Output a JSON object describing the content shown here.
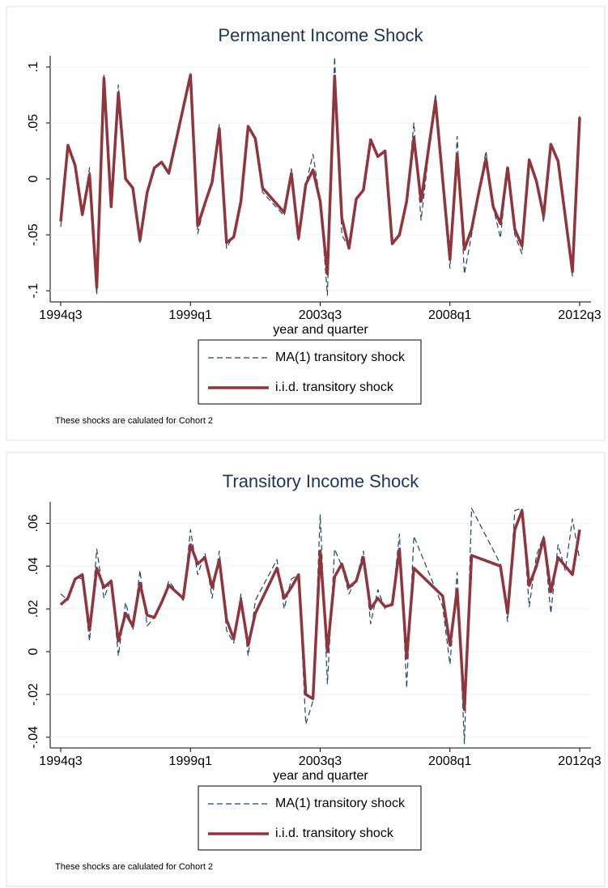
{
  "chart_data": [
    {
      "type": "line",
      "title": "Permanent Income Shock",
      "xlabel": "year and quarter",
      "note": "These shocks are calulated for Cohort 2",
      "x": [
        "1994q3",
        "1994q4",
        "1995q1",
        "1995q2",
        "1995q3",
        "1995q4",
        "1996q1",
        "1996q2",
        "1996q3",
        "1996q4",
        "1997q1",
        "1997q2",
        "1997q3",
        "1997q4",
        "1998q1",
        "1998q2",
        "1999q1",
        "1999q2",
        "1999q3",
        "1999q4",
        "2000q1",
        "2000q2",
        "2000q3",
        "2000q4",
        "2001q1",
        "2001q2",
        "2001q3",
        "2002q2",
        "2002q3",
        "2002q4",
        "2003q1",
        "2003q2",
        "2003q3",
        "2003q4",
        "2004q1",
        "2004q2",
        "2004q3",
        "2004q4",
        "2005q1",
        "2005q2",
        "2005q3",
        "2005q4",
        "2006q1",
        "2006q2",
        "2006q3",
        "2006q4",
        "2007q1",
        "2007q3",
        "2008q1",
        "2008q2",
        "2008q3",
        "2008q4",
        "2009q1",
        "2009q2",
        "2009q3",
        "2009q4",
        "2010q1",
        "2010q2",
        "2010q3",
        "2010q4",
        "2011q1",
        "2011q2",
        "2011q3",
        "2011q4",
        "2012q2",
        "2012q3"
      ],
      "series": [
        {
          "name": "MA(1) transitory shock",
          "color": "#1a476f",
          "dash": true,
          "values": [
            -0.043,
            0.03,
            0.012,
            -0.032,
            0.01,
            -0.104,
            0.094,
            -0.025,
            0.084,
            0.0,
            -0.008,
            -0.057,
            -0.012,
            0.01,
            0.015,
            0.005,
            0.094,
            -0.049,
            -0.022,
            -0.003,
            0.049,
            -0.062,
            -0.05,
            -0.02,
            0.047,
            0.037,
            -0.012,
            -0.033,
            0.009,
            -0.055,
            -0.005,
            0.022,
            -0.02,
            -0.104,
            0.109,
            -0.05,
            -0.062,
            -0.018,
            -0.01,
            0.035,
            0.02,
            0.025,
            -0.058,
            -0.05,
            -0.02,
            0.05,
            -0.037,
            0.076,
            -0.08,
            0.038,
            -0.085,
            -0.05,
            -0.012,
            0.025,
            -0.025,
            -0.053,
            0.01,
            -0.05,
            -0.067,
            0.018,
            0.0,
            -0.039,
            0.031,
            0.016,
            -0.087,
            0.059
          ]
        },
        {
          "name": "i.i.d. transitory shock",
          "color": "#90353b",
          "dash": false,
          "values": [
            -0.038,
            0.03,
            0.012,
            -0.032,
            0.004,
            -0.097,
            0.09,
            -0.025,
            0.077,
            0.0,
            -0.008,
            -0.055,
            -0.012,
            0.01,
            0.015,
            0.005,
            0.093,
            -0.042,
            -0.022,
            -0.003,
            0.045,
            -0.057,
            -0.052,
            -0.02,
            0.047,
            0.036,
            -0.008,
            -0.03,
            0.005,
            -0.053,
            -0.005,
            0.008,
            -0.02,
            -0.085,
            0.092,
            -0.035,
            -0.062,
            -0.018,
            -0.01,
            0.035,
            0.02,
            0.025,
            -0.058,
            -0.05,
            -0.02,
            0.037,
            -0.02,
            0.07,
            -0.072,
            0.022,
            -0.063,
            -0.045,
            -0.012,
            0.018,
            -0.025,
            -0.04,
            0.01,
            -0.045,
            -0.06,
            0.017,
            -0.002,
            -0.033,
            0.031,
            0.016,
            -0.083,
            0.055
          ]
        }
      ],
      "xlim": [
        "1994q3",
        "2012q3"
      ],
      "xticks": [
        "1994q3",
        "1999q1",
        "2003q3",
        "2008q1",
        "2012q3"
      ],
      "ylim": [
        -0.11,
        0.11
      ],
      "yticks": [
        {
          "value": -0.1,
          "label": "-.1"
        },
        {
          "value": -0.05,
          "label": "-.05"
        },
        0,
        {
          "value": 0.05,
          "label": ".05"
        },
        {
          "value": 0.1,
          "label": ".1"
        }
      ],
      "grid": true
    },
    {
      "type": "line",
      "title": "Transitory Income Shock",
      "xlabel": "year and quarter",
      "note": "These shocks are calulated for Cohort 2",
      "x": [
        "1994q3",
        "1994q4",
        "1995q1",
        "1995q2",
        "1995q3",
        "1995q4",
        "1996q1",
        "1996q2",
        "1996q3",
        "1996q4",
        "1997q1",
        "1997q2",
        "1997q3",
        "1997q4",
        "1998q1",
        "1998q2",
        "1998q4",
        "1999q1",
        "1999q2",
        "1999q3",
        "1999q4",
        "2000q1",
        "2000q2",
        "2000q3",
        "2000q4",
        "2001q1",
        "2001q2",
        "2002q1",
        "2002q2",
        "2002q3",
        "2002q4",
        "2003q1",
        "2003q2",
        "2003q3",
        "2003q4",
        "2004q1",
        "2004q2",
        "2004q3",
        "2004q4",
        "2005q1",
        "2005q2",
        "2005q3",
        "2005q4",
        "2006q1",
        "2006q2",
        "2006q3",
        "2006q4",
        "2007q4",
        "2008q1",
        "2008q2",
        "2008q3",
        "2008q4",
        "2009q4",
        "2010q1",
        "2010q2",
        "2010q3",
        "2010q4",
        "2011q1",
        "2011q2",
        "2011q3",
        "2011q4",
        "2012q1",
        "2012q2",
        "2012q3"
      ],
      "series": [
        {
          "name": "MA(1) transitory shock",
          "color": "#1a476f",
          "dash": true,
          "values": [
            0.027,
            0.024,
            0.035,
            0.034,
            0.005,
            0.048,
            0.025,
            0.034,
            -0.002,
            0.023,
            0.01,
            0.038,
            0.012,
            0.016,
            0.023,
            0.033,
            0.024,
            0.057,
            0.036,
            0.046,
            0.025,
            0.047,
            0.01,
            0.004,
            0.027,
            -0.002,
            0.024,
            0.043,
            0.02,
            0.034,
            0.036,
            -0.034,
            -0.023,
            0.064,
            -0.015,
            0.048,
            0.04,
            0.027,
            0.034,
            0.047,
            0.013,
            0.029,
            0.02,
            0.023,
            0.055,
            -0.017,
            0.054,
            0.021,
            -0.006,
            0.037,
            -0.043,
            0.067,
            0.041,
            0.014,
            0.066,
            0.067,
            0.021,
            0.045,
            0.054,
            0.018,
            0.05,
            0.038,
            0.062,
            0.043
          ]
        },
        {
          "name": "i.i.d. transitory shock",
          "color": "#90353b",
          "dash": false,
          "values": [
            0.022,
            0.025,
            0.034,
            0.036,
            0.01,
            0.039,
            0.03,
            0.033,
            0.005,
            0.018,
            0.012,
            0.032,
            0.017,
            0.016,
            0.023,
            0.031,
            0.025,
            0.05,
            0.041,
            0.044,
            0.03,
            0.043,
            0.015,
            0.006,
            0.024,
            0.003,
            0.018,
            0.039,
            0.025,
            0.03,
            0.036,
            -0.02,
            -0.022,
            0.047,
            0.0,
            0.035,
            0.041,
            0.03,
            0.033,
            0.044,
            0.02,
            0.025,
            0.021,
            0.022,
            0.048,
            -0.003,
            0.039,
            0.026,
            0.003,
            0.029,
            -0.027,
            0.045,
            0.04,
            0.018,
            0.057,
            0.066,
            0.031,
            0.04,
            0.053,
            0.028,
            0.044,
            0.04,
            0.036,
            0.057
          ]
        }
      ],
      "xlim": [
        "1994q3",
        "2012q3"
      ],
      "xticks": [
        "1994q3",
        "1999q1",
        "2003q3",
        "2008q1",
        "2012q3"
      ],
      "ylim": [
        -0.045,
        0.07
      ],
      "yticks": [
        {
          "value": -0.04,
          "label": "-.04"
        },
        {
          "value": -0.02,
          "label": "-.02"
        },
        0,
        {
          "value": 0.02,
          "label": ".02"
        },
        {
          "value": 0.04,
          "label": ".04"
        },
        {
          "value": 0.06,
          "label": ".06"
        }
      ],
      "grid": true
    }
  ]
}
